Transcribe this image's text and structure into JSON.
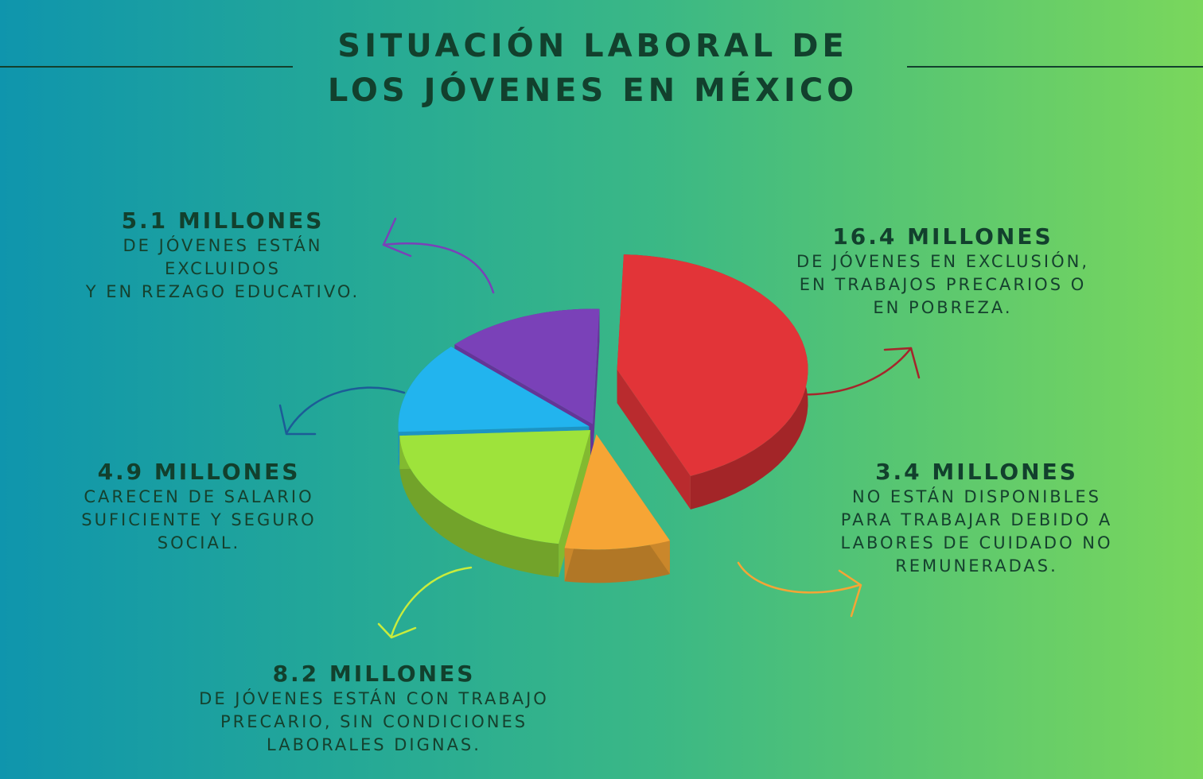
{
  "title_line1": "SITUACIÓN LABORAL DE",
  "title_line2": "LOS JÓVENES EN MÉXICO",
  "chart_data": {
    "type": "pie",
    "unit": "MILLONES",
    "slices": [
      {
        "value": 16.4,
        "value_label": "16.4 MILLONES",
        "description": "DE JÓVENES EN EXCLUSIÓN,\nEN TRABAJOS PRECARIOS O\nEN POBREZA.",
        "color": "#e23438"
      },
      {
        "value": 3.4,
        "value_label": "3.4 MILLONES",
        "description": "NO ESTÁN DISPONIBLES\nPARA TRABAJAR DEBIDO A\nLABORES DE CUIDADO NO\nREMUNERADAS.",
        "color": "#f6a535"
      },
      {
        "value": 8.2,
        "value_label": "8.2 MILLONES",
        "description": "DE JÓVENES ESTÁN CON TRABAJO\nPRECARIO, SIN CONDICIONES\nLABORALES DIGNAS.",
        "color": "#9ee33b"
      },
      {
        "value": 4.9,
        "value_label": "4.9 MILLONES",
        "description": "CARECEN DE SALARIO\nSUFICIENTE Y SEGURO\nSOCIAL.",
        "color": "#22b4ee"
      },
      {
        "value": 5.1,
        "value_label": "5.1 MILLONES",
        "description": "DE JÓVENES ESTÁN\nEXCLUIDOS\nY EN REZAGO EDUCATIVO.",
        "color": "#7a41b8"
      }
    ],
    "arrow_colors": [
      "#a5262b",
      "#f6a535",
      "#c9ec3c",
      "#1c5c97",
      "#7a41b8"
    ]
  }
}
